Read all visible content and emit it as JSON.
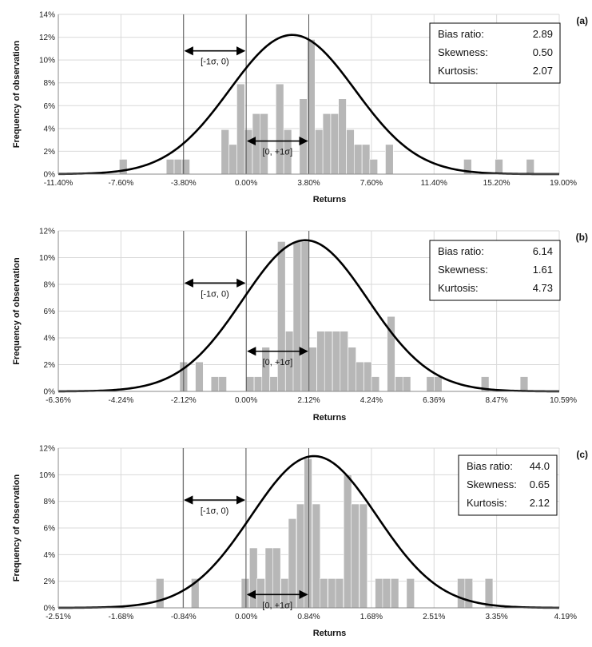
{
  "chart_data": [
    {
      "type": "bar",
      "panel": "(a)",
      "title": "",
      "xlabel": "Returns",
      "ylabel": "Frequency of observation",
      "x_tick_labels": [
        "-11.40%",
        "-7.60%",
        "-3.80%",
        "0.00%",
        "3.80%",
        "7.60%",
        "11.40%",
        "15.20%",
        "19.00%"
      ],
      "xlim": [
        -11.4,
        19.0
      ],
      "y_tick_labels": [
        "0%",
        "2%",
        "4%",
        "6%",
        "8%",
        "10%",
        "12%",
        "14%"
      ],
      "ylim": [
        0,
        14
      ],
      "grid": true,
      "bin_width": 0.475,
      "bars": [
        {
          "x": -7.46,
          "y": 1.3
        },
        {
          "x": -4.61,
          "y": 1.3
        },
        {
          "x": -4.13,
          "y": 1.3
        },
        {
          "x": -3.66,
          "y": 1.3
        },
        {
          "x": -1.28,
          "y": 3.9
        },
        {
          "x": -0.81,
          "y": 2.6
        },
        {
          "x": -0.33,
          "y": 7.9
        },
        {
          "x": 0.14,
          "y": 3.9
        },
        {
          "x": 0.62,
          "y": 5.3
        },
        {
          "x": 1.09,
          "y": 5.3
        },
        {
          "x": 2.04,
          "y": 7.9
        },
        {
          "x": 2.52,
          "y": 3.9
        },
        {
          "x": 3.47,
          "y": 6.6
        },
        {
          "x": 3.94,
          "y": 11.8
        },
        {
          "x": 4.42,
          "y": 3.9
        },
        {
          "x": 4.89,
          "y": 5.3
        },
        {
          "x": 5.37,
          "y": 5.3
        },
        {
          "x": 5.84,
          "y": 6.6
        },
        {
          "x": 6.32,
          "y": 3.9
        },
        {
          "x": 6.79,
          "y": 2.6
        },
        {
          "x": 7.27,
          "y": 2.6
        },
        {
          "x": 7.74,
          "y": 1.3
        },
        {
          "x": 8.69,
          "y": 2.6
        },
        {
          "x": 13.44,
          "y": 1.3
        },
        {
          "x": 15.34,
          "y": 1.3
        },
        {
          "x": 17.24,
          "y": 1.3
        }
      ],
      "curve": {
        "type": "normal",
        "mean": 2.8,
        "sd": 3.8,
        "peak": 12.2
      },
      "reference_lines_x": [
        -3.8,
        0.0,
        3.8
      ],
      "annotations": [
        {
          "text": "[-1σ, 0)",
          "from": -3.8,
          "to": 0.0,
          "y": 10.8
        },
        {
          "text": "[0, +1σ]",
          "from": 0.0,
          "to": 3.8,
          "y": 2.9
        }
      ],
      "stats": [
        {
          "label": "Bias ratio:",
          "value": "2.89"
        },
        {
          "label": "Skewness:",
          "value": "0.50"
        },
        {
          "label": "Kurtosis:",
          "value": "2.07"
        }
      ]
    },
    {
      "type": "bar",
      "panel": "(b)",
      "title": "",
      "xlabel": "Returns",
      "ylabel": "Frequency of observation",
      "x_tick_labels": [
        "-6.36%",
        "-4.24%",
        "-2.12%",
        "0.00%",
        "2.12%",
        "4.24%",
        "6.36%",
        "8.47%",
        "10.59%"
      ],
      "xlim": [
        -6.36,
        10.59
      ],
      "y_tick_labels": [
        "0%",
        "2%",
        "4%",
        "6%",
        "8%",
        "10%",
        "12%"
      ],
      "ylim": [
        0,
        12
      ],
      "grid": true,
      "bin_width": 0.265,
      "bars": [
        {
          "x": -2.12,
          "y": 2.2
        },
        {
          "x": -1.59,
          "y": 2.2
        },
        {
          "x": -1.06,
          "y": 1.1
        },
        {
          "x": -0.8,
          "y": 1.1
        },
        {
          "x": 0.13,
          "y": 1.1
        },
        {
          "x": 0.4,
          "y": 1.1
        },
        {
          "x": 0.66,
          "y": 3.3
        },
        {
          "x": 0.93,
          "y": 1.1
        },
        {
          "x": 1.19,
          "y": 11.2
        },
        {
          "x": 1.46,
          "y": 4.5
        },
        {
          "x": 1.72,
          "y": 11.2
        },
        {
          "x": 1.99,
          "y": 11.2
        },
        {
          "x": 2.25,
          "y": 3.3
        },
        {
          "x": 2.52,
          "y": 4.5
        },
        {
          "x": 2.78,
          "y": 4.5
        },
        {
          "x": 3.05,
          "y": 4.5
        },
        {
          "x": 3.31,
          "y": 4.5
        },
        {
          "x": 3.58,
          "y": 3.3
        },
        {
          "x": 3.84,
          "y": 2.2
        },
        {
          "x": 4.11,
          "y": 2.2
        },
        {
          "x": 4.37,
          "y": 1.1
        },
        {
          "x": 4.9,
          "y": 5.6
        },
        {
          "x": 5.17,
          "y": 1.1
        },
        {
          "x": 5.43,
          "y": 1.1
        },
        {
          "x": 6.23,
          "y": 1.1
        },
        {
          "x": 6.49,
          "y": 1.1
        },
        {
          "x": 8.08,
          "y": 1.1
        },
        {
          "x": 9.4,
          "y": 1.1
        }
      ],
      "curve": {
        "type": "normal",
        "mean": 2.0,
        "sd": 2.12,
        "peak": 11.3
      },
      "reference_lines_x": [
        -2.12,
        0.0,
        2.12
      ],
      "annotations": [
        {
          "text": "[-1σ, 0)",
          "from": -2.12,
          "to": 0.0,
          "y": 8.1
        },
        {
          "text": "[0, +1σ]",
          "from": 0.0,
          "to": 2.12,
          "y": 3.0
        }
      ],
      "stats": [
        {
          "label": "Bias ratio:",
          "value": "6.14"
        },
        {
          "label": "Skewness:",
          "value": "1.61"
        },
        {
          "label": "Kurtosis:",
          "value": "4.73"
        }
      ]
    },
    {
      "type": "bar",
      "panel": "(c)",
      "title": "",
      "xlabel": "Returns",
      "ylabel": "Frequency of observation",
      "x_tick_labels": [
        "-2.51%",
        "-1.68%",
        "-0.84%",
        "0.00%",
        "0.84%",
        "1.68%",
        "2.51%",
        "3.35%",
        "4.19%"
      ],
      "xlim": [
        -2.51,
        4.19
      ],
      "y_tick_labels": [
        "0%",
        "2%",
        "4%",
        "6%",
        "8%",
        "10%",
        "12%"
      ],
      "ylim": [
        0,
        12
      ],
      "grid": true,
      "bin_width": 0.105,
      "bars": [
        {
          "x": -1.15,
          "y": 2.2
        },
        {
          "x": -0.68,
          "y": 2.2
        },
        {
          "x": -0.01,
          "y": 2.2
        },
        {
          "x": 0.1,
          "y": 4.5
        },
        {
          "x": 0.2,
          "y": 2.2
        },
        {
          "x": 0.31,
          "y": 4.5
        },
        {
          "x": 0.41,
          "y": 4.5
        },
        {
          "x": 0.52,
          "y": 2.2
        },
        {
          "x": 0.62,
          "y": 6.7
        },
        {
          "x": 0.73,
          "y": 7.8
        },
        {
          "x": 0.83,
          "y": 11.2
        },
        {
          "x": 0.94,
          "y": 7.8
        },
        {
          "x": 1.04,
          "y": 2.2
        },
        {
          "x": 1.15,
          "y": 2.2
        },
        {
          "x": 1.25,
          "y": 2.2
        },
        {
          "x": 1.36,
          "y": 10.0
        },
        {
          "x": 1.46,
          "y": 7.8
        },
        {
          "x": 1.57,
          "y": 7.8
        },
        {
          "x": 1.78,
          "y": 2.2
        },
        {
          "x": 1.88,
          "y": 2.2
        },
        {
          "x": 1.99,
          "y": 2.2
        },
        {
          "x": 2.2,
          "y": 2.2
        },
        {
          "x": 2.88,
          "y": 2.2
        },
        {
          "x": 2.98,
          "y": 2.2
        },
        {
          "x": 3.25,
          "y": 2.2
        }
      ],
      "curve": {
        "type": "normal",
        "mean": 0.91,
        "sd": 0.84,
        "peak": 11.4
      },
      "reference_lines_x": [
        -0.84,
        0.0,
        0.84
      ],
      "annotations": [
        {
          "text": "[-1σ, 0)",
          "from": -0.84,
          "to": 0.0,
          "y": 8.1
        },
        {
          "text": "[0, +1σ]",
          "from": 0.0,
          "to": 0.84,
          "y": 1.0
        }
      ],
      "stats": [
        {
          "label": "Bias ratio:",
          "value": "44.0"
        },
        {
          "label": "Skewness:",
          "value": "0.65"
        },
        {
          "label": "Kurtosis:",
          "value": "2.12"
        }
      ]
    }
  ],
  "colors": {
    "bar": "#b7b7b7",
    "bar_edge": "#ffffff",
    "curve": "#000000",
    "grid": "#d9d9d9",
    "reference_line": "#555555",
    "axis": "#888888"
  }
}
